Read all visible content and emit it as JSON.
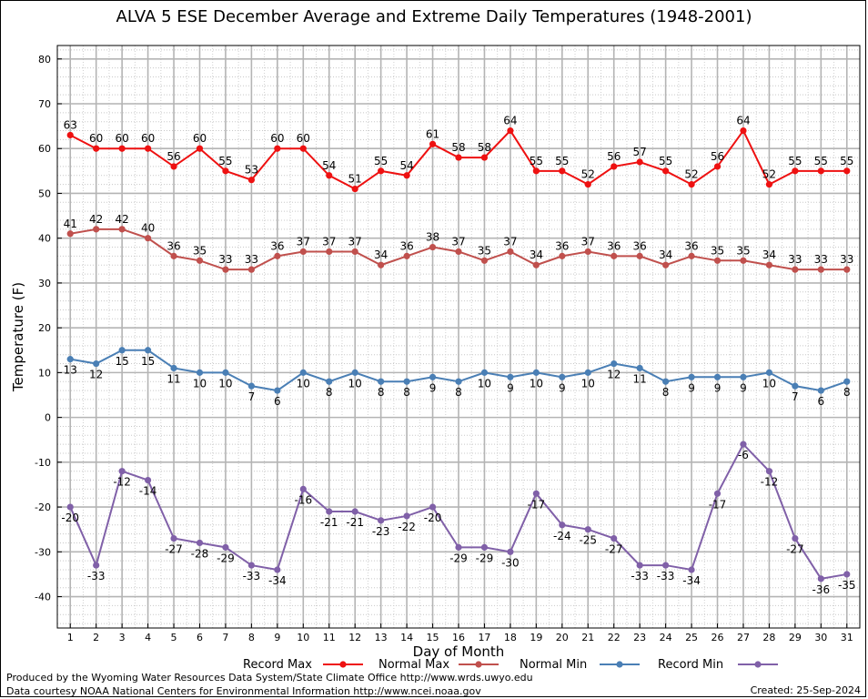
{
  "chart_data": {
    "type": "line",
    "title": "ALVA 5 ESE December Average and Extreme Daily Temperatures (1948-2001)",
    "xlabel": "Day of Month",
    "ylabel": "Temperature (F)",
    "ylim": [
      -47,
      83
    ],
    "yticks": [
      -40,
      -30,
      -20,
      -10,
      0,
      10,
      20,
      30,
      40,
      50,
      60,
      70,
      80
    ],
    "x": [
      1,
      2,
      3,
      4,
      5,
      6,
      7,
      8,
      9,
      10,
      11,
      12,
      13,
      14,
      15,
      16,
      17,
      18,
      19,
      20,
      21,
      22,
      23,
      24,
      25,
      26,
      27,
      28,
      29,
      30,
      31
    ],
    "grid": true,
    "legend_position": "bottom",
    "series": [
      {
        "name": "Record Max",
        "color": "#ee1111",
        "label_position": "above",
        "values": [
          63,
          60,
          60,
          60,
          56,
          60,
          55,
          53,
          60,
          60,
          54,
          51,
          55,
          54,
          61,
          58,
          58,
          64,
          55,
          55,
          52,
          56,
          57,
          55,
          52,
          56,
          64,
          52,
          55,
          55,
          55
        ]
      },
      {
        "name": "Normal Max",
        "color": "#c0504d",
        "label_position": "above",
        "values": [
          41,
          42,
          42,
          40,
          36,
          35,
          33,
          33,
          36,
          37,
          37,
          37,
          34,
          36,
          38,
          37,
          35,
          37,
          34,
          36,
          37,
          36,
          36,
          34,
          36,
          35,
          35,
          34,
          33,
          33,
          33
        ]
      },
      {
        "name": "Normal Min",
        "color": "#4a7fb5",
        "label_position": "below",
        "values": [
          13,
          12,
          15,
          15,
          11,
          10,
          10,
          7,
          6,
          10,
          8,
          10,
          8,
          8,
          9,
          8,
          10,
          9,
          10,
          9,
          10,
          12,
          11,
          8,
          9,
          9,
          9,
          10,
          7,
          6,
          8
        ]
      },
      {
        "name": "Record Min",
        "color": "#8060a8",
        "label_position": "below",
        "values": [
          -20,
          -33,
          -12,
          -14,
          -27,
          -28,
          -29,
          -33,
          -34,
          -16,
          -21,
          -21,
          -23,
          -22,
          -20,
          -29,
          -29,
          -30,
          -17,
          -24,
          -25,
          -27,
          -33,
          -33,
          -34,
          -17,
          -6,
          -12,
          -27,
          -36,
          -35
        ]
      }
    ]
  },
  "footer": {
    "line1": "Produced by the Wyoming Water Resources Data System/State Climate Office http://www.wrds.uwyo.edu",
    "line2": "Data courtesy NOAA National Centers for Environmental Information http://www.ncei.noaa.gov",
    "created": "Created:  25-Sep-2024"
  }
}
